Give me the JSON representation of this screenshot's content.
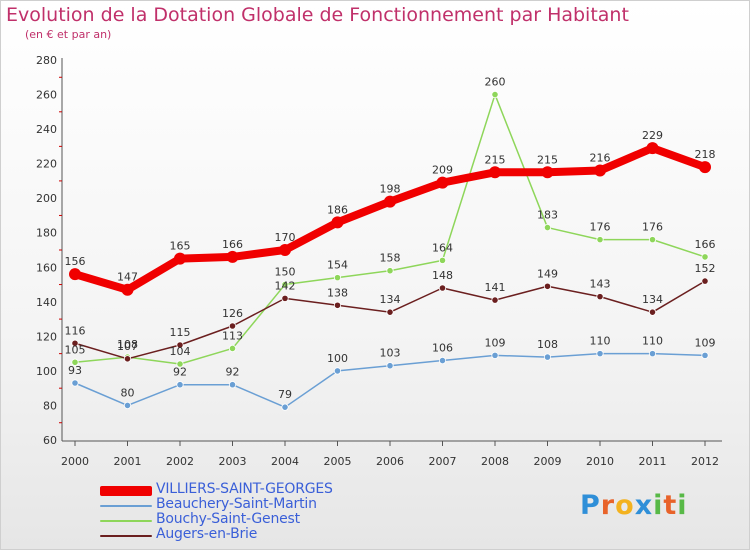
{
  "title": "Evolution de la Dotation Globale de Fonctionnement par Habitant",
  "subtitle": "(en € et par an)",
  "logo": {
    "letters": [
      {
        "ch": "P",
        "color": "#2f8fd8"
      },
      {
        "ch": "r",
        "color": "#e8632a"
      },
      {
        "ch": "o",
        "color": "#f3b21f"
      },
      {
        "ch": "x",
        "color": "#2f8fd8"
      },
      {
        "ch": "i",
        "color": "#58b947"
      },
      {
        "ch": "t",
        "color": "#e8632a"
      },
      {
        "ch": "i",
        "color": "#58b947"
      }
    ]
  },
  "chart_data": {
    "type": "line",
    "x": [
      "2000",
      "2001",
      "2002",
      "2003",
      "2004",
      "2005",
      "2006",
      "2007",
      "2008",
      "2009",
      "2010",
      "2011",
      "2012"
    ],
    "ylim": [
      60,
      280
    ],
    "yticks": [
      "60",
      "80",
      "100",
      "120",
      "140",
      "160",
      "180",
      "200",
      "220",
      "240",
      "260",
      "280"
    ],
    "grid": false,
    "legend_position": "bottom-left",
    "series": [
      {
        "name": "VILLIERS-SAINT-GEORGES",
        "color": "#f00000",
        "width": 8,
        "labels": [
          "156",
          "147",
          "165",
          "166",
          "170",
          "186",
          "198",
          "209",
          "215",
          "215",
          "216",
          "229",
          "218"
        ],
        "values": [
          156,
          147,
          165,
          166,
          170,
          186,
          198,
          209,
          215,
          215,
          216,
          229,
          218
        ]
      },
      {
        "name": "Beauchery-Saint-Martin",
        "color": "#6a9fd4",
        "width": 1.5,
        "labels": [
          "93",
          "80",
          "92",
          "92",
          "79",
          "100",
          "103",
          "106",
          "109",
          "108",
          "110",
          "110",
          "109"
        ],
        "values": [
          93,
          80,
          92,
          92,
          79,
          100,
          103,
          106,
          109,
          108,
          110,
          110,
          109
        ]
      },
      {
        "name": "Bouchy-Saint-Genest",
        "color": "#8ed65a",
        "width": 1.5,
        "labels": [
          "105",
          "108",
          "104",
          "113",
          "150",
          "154",
          "158",
          "164",
          "260",
          "183",
          "176",
          "176",
          "166"
        ],
        "values": [
          105,
          108,
          104,
          113,
          150,
          154,
          158,
          164,
          260,
          183,
          176,
          176,
          166
        ]
      },
      {
        "name": "Augers-en-Brie",
        "color": "#6b1f1f",
        "width": 1.5,
        "labels": [
          "116",
          "107",
          "115",
          "126",
          "142",
          "138",
          "134",
          "148",
          "141",
          "149",
          "143",
          "134",
          "152"
        ],
        "values": [
          116,
          107,
          115,
          126,
          142,
          138,
          134,
          148,
          141,
          149,
          143,
          134,
          152
        ]
      }
    ]
  }
}
